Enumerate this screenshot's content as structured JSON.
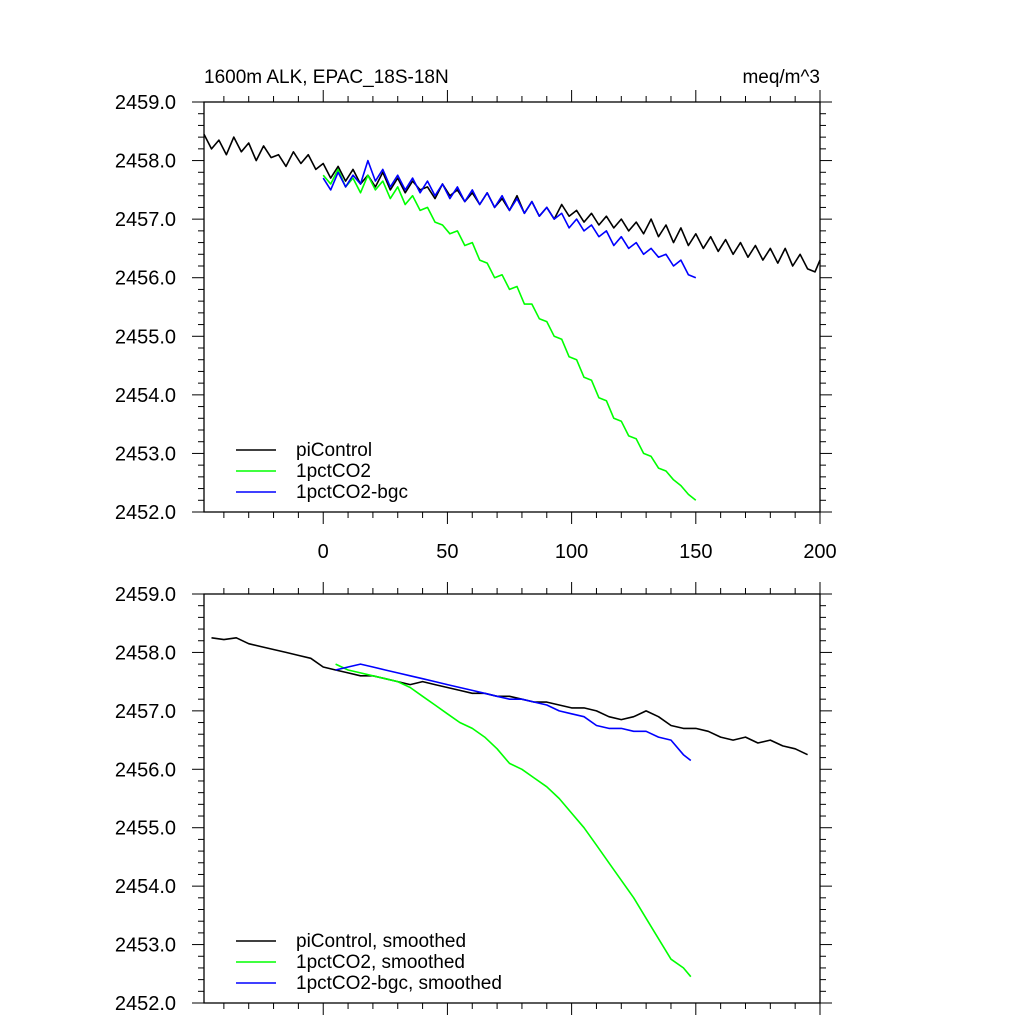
{
  "figure": {
    "title_left": "1600m ALK, EPAC_18S-18N",
    "title_right": "meq/m^3"
  },
  "chart_data": [
    {
      "type": "line",
      "panel": "top",
      "xlim": [
        -48,
        200
      ],
      "ylim": [
        2452.0,
        2459.0
      ],
      "x_ticks": [
        0,
        50,
        100,
        150,
        200
      ],
      "x_tick_labels": [
        "0",
        "50",
        "100",
        "150",
        "200"
      ],
      "y_ticks": [
        2452.0,
        2453.0,
        2454.0,
        2455.0,
        2456.0,
        2457.0,
        2458.0,
        2459.0
      ],
      "y_tick_labels": [
        "2452.0",
        "2453.0",
        "2454.0",
        "2455.0",
        "2456.0",
        "2457.0",
        "2458.0",
        "2459.0"
      ],
      "legend_position": "bottom-left",
      "series": [
        {
          "name": "piControl",
          "color": "#000000",
          "x": [
            -48,
            -45,
            -42,
            -39,
            -36,
            -33,
            -30,
            -27,
            -24,
            -21,
            -18,
            -15,
            -12,
            -9,
            -6,
            -3,
            0,
            3,
            6,
            9,
            12,
            15,
            18,
            21,
            24,
            27,
            30,
            33,
            36,
            39,
            42,
            45,
            48,
            51,
            54,
            57,
            60,
            63,
            66,
            69,
            72,
            75,
            78,
            81,
            84,
            87,
            90,
            93,
            96,
            99,
            102,
            105,
            108,
            111,
            114,
            117,
            120,
            123,
            126,
            129,
            132,
            135,
            138,
            141,
            144,
            147,
            150,
            153,
            156,
            159,
            162,
            165,
            168,
            171,
            174,
            177,
            180,
            183,
            186,
            189,
            192,
            195,
            198,
            200
          ],
          "y": [
            2458.45,
            2458.2,
            2458.35,
            2458.1,
            2458.4,
            2458.15,
            2458.3,
            2458.0,
            2458.25,
            2458.05,
            2458.1,
            2457.9,
            2458.15,
            2457.95,
            2458.1,
            2457.85,
            2457.95,
            2457.7,
            2457.9,
            2457.65,
            2457.85,
            2457.6,
            2457.75,
            2457.55,
            2457.8,
            2457.5,
            2457.7,
            2457.45,
            2457.65,
            2457.5,
            2457.55,
            2457.35,
            2457.6,
            2457.4,
            2457.5,
            2457.3,
            2457.45,
            2457.25,
            2457.45,
            2457.2,
            2457.35,
            2457.15,
            2457.4,
            2457.1,
            2457.3,
            2457.05,
            2457.2,
            2457.0,
            2457.25,
            2457.05,
            2457.15,
            2456.95,
            2457.1,
            2456.9,
            2457.05,
            2456.85,
            2457.0,
            2456.8,
            2456.95,
            2456.75,
            2457.0,
            2456.7,
            2456.9,
            2456.6,
            2456.85,
            2456.55,
            2456.75,
            2456.5,
            2456.7,
            2456.45,
            2456.65,
            2456.4,
            2456.6,
            2456.35,
            2456.55,
            2456.3,
            2456.5,
            2456.25,
            2456.5,
            2456.2,
            2456.4,
            2456.15,
            2456.1,
            2456.3
          ]
        },
        {
          "name": "1pctCO2",
          "color": "#00ff00",
          "x": [
            0,
            3,
            6,
            9,
            12,
            15,
            18,
            21,
            24,
            27,
            30,
            33,
            36,
            39,
            42,
            45,
            48,
            51,
            54,
            57,
            60,
            63,
            66,
            69,
            72,
            75,
            78,
            81,
            84,
            87,
            90,
            93,
            96,
            99,
            102,
            105,
            108,
            111,
            114,
            117,
            120,
            123,
            126,
            129,
            132,
            135,
            138,
            141,
            144,
            147,
            150
          ],
          "y": [
            2457.75,
            2457.6,
            2457.85,
            2457.55,
            2457.7,
            2457.45,
            2457.75,
            2457.5,
            2457.65,
            2457.35,
            2457.55,
            2457.25,
            2457.4,
            2457.15,
            2457.2,
            2456.95,
            2456.9,
            2456.75,
            2456.8,
            2456.55,
            2456.6,
            2456.3,
            2456.25,
            2456.0,
            2456.05,
            2455.8,
            2455.85,
            2455.55,
            2455.55,
            2455.3,
            2455.25,
            2455.0,
            2454.95,
            2454.65,
            2454.6,
            2454.3,
            2454.25,
            2453.95,
            2453.9,
            2453.6,
            2453.55,
            2453.3,
            2453.25,
            2453.0,
            2452.95,
            2452.75,
            2452.7,
            2452.55,
            2452.45,
            2452.3,
            2452.2
          ]
        },
        {
          "name": "1pctCO2-bgc",
          "color": "#0000ff",
          "x": [
            0,
            3,
            6,
            9,
            12,
            15,
            18,
            21,
            24,
            27,
            30,
            33,
            36,
            39,
            42,
            45,
            48,
            51,
            54,
            57,
            60,
            63,
            66,
            69,
            72,
            75,
            78,
            81,
            84,
            87,
            90,
            93,
            96,
            99,
            102,
            105,
            108,
            111,
            114,
            117,
            120,
            123,
            126,
            129,
            132,
            135,
            138,
            141,
            144,
            147,
            150
          ],
          "y": [
            2457.7,
            2457.5,
            2457.8,
            2457.55,
            2457.75,
            2457.6,
            2458.0,
            2457.65,
            2457.85,
            2457.55,
            2457.75,
            2457.5,
            2457.7,
            2457.45,
            2457.65,
            2457.4,
            2457.6,
            2457.35,
            2457.55,
            2457.3,
            2457.5,
            2457.25,
            2457.45,
            2457.2,
            2457.4,
            2457.15,
            2457.35,
            2457.1,
            2457.3,
            2457.05,
            2457.2,
            2457.0,
            2457.1,
            2456.85,
            2457.0,
            2456.8,
            2456.9,
            2456.7,
            2456.8,
            2456.55,
            2456.7,
            2456.5,
            2456.6,
            2456.4,
            2456.5,
            2456.35,
            2456.4,
            2456.2,
            2456.3,
            2456.05,
            2456.0
          ]
        }
      ]
    },
    {
      "type": "line",
      "panel": "bottom",
      "xlim": [
        -48,
        200
      ],
      "ylim": [
        2452.0,
        2459.0
      ],
      "y_ticks": [
        2452.0,
        2453.0,
        2454.0,
        2455.0,
        2456.0,
        2457.0,
        2458.0,
        2459.0
      ],
      "y_tick_labels": [
        "2452.0",
        "2453.0",
        "2454.0",
        "2455.0",
        "2456.0",
        "2457.0",
        "2458.0",
        "2459.0"
      ],
      "legend_position": "bottom-left",
      "series": [
        {
          "name": "piControl, smoothed",
          "color": "#000000",
          "x": [
            -45,
            -40,
            -35,
            -30,
            -25,
            -20,
            -15,
            -10,
            -5,
            0,
            5,
            10,
            15,
            20,
            25,
            30,
            35,
            40,
            45,
            50,
            55,
            60,
            65,
            70,
            75,
            80,
            85,
            90,
            95,
            100,
            105,
            110,
            115,
            120,
            125,
            130,
            135,
            140,
            145,
            150,
            155,
            160,
            165,
            170,
            175,
            180,
            185,
            190,
            195
          ],
          "y": [
            2458.25,
            2458.22,
            2458.25,
            2458.15,
            2458.1,
            2458.05,
            2458.0,
            2457.95,
            2457.9,
            2457.75,
            2457.7,
            2457.65,
            2457.6,
            2457.6,
            2457.55,
            2457.5,
            2457.45,
            2457.5,
            2457.45,
            2457.4,
            2457.35,
            2457.3,
            2457.3,
            2457.25,
            2457.25,
            2457.2,
            2457.15,
            2457.15,
            2457.1,
            2457.05,
            2457.05,
            2457.0,
            2456.9,
            2456.85,
            2456.9,
            2457.0,
            2456.9,
            2456.75,
            2456.7,
            2456.7,
            2456.65,
            2456.55,
            2456.5,
            2456.55,
            2456.45,
            2456.5,
            2456.4,
            2456.35,
            2456.25
          ]
        },
        {
          "name": "1pctCO2, smoothed",
          "color": "#00ff00",
          "x": [
            5,
            10,
            15,
            20,
            25,
            30,
            35,
            40,
            45,
            50,
            55,
            60,
            65,
            70,
            75,
            80,
            85,
            90,
            95,
            100,
            105,
            110,
            115,
            120,
            125,
            130,
            135,
            140,
            145,
            148
          ],
          "y": [
            2457.8,
            2457.7,
            2457.65,
            2457.6,
            2457.55,
            2457.5,
            2457.4,
            2457.25,
            2457.1,
            2456.95,
            2456.8,
            2456.7,
            2456.55,
            2456.35,
            2456.1,
            2456.0,
            2455.85,
            2455.7,
            2455.5,
            2455.25,
            2455.0,
            2454.7,
            2454.4,
            2454.1,
            2453.8,
            2453.45,
            2453.1,
            2452.75,
            2452.6,
            2452.45
          ]
        },
        {
          "name": "1pctCO2-bgc, smoothed",
          "color": "#0000ff",
          "x": [
            5,
            10,
            15,
            20,
            25,
            30,
            35,
            40,
            45,
            50,
            55,
            60,
            65,
            70,
            75,
            80,
            85,
            90,
            95,
            100,
            105,
            110,
            115,
            120,
            125,
            130,
            135,
            140,
            145,
            148
          ],
          "y": [
            2457.7,
            2457.75,
            2457.8,
            2457.75,
            2457.7,
            2457.65,
            2457.6,
            2457.55,
            2457.5,
            2457.45,
            2457.4,
            2457.35,
            2457.3,
            2457.25,
            2457.2,
            2457.2,
            2457.15,
            2457.1,
            2457.0,
            2456.95,
            2456.9,
            2456.75,
            2456.7,
            2456.7,
            2456.65,
            2456.65,
            2456.55,
            2456.5,
            2456.25,
            2456.15
          ]
        }
      ]
    }
  ]
}
